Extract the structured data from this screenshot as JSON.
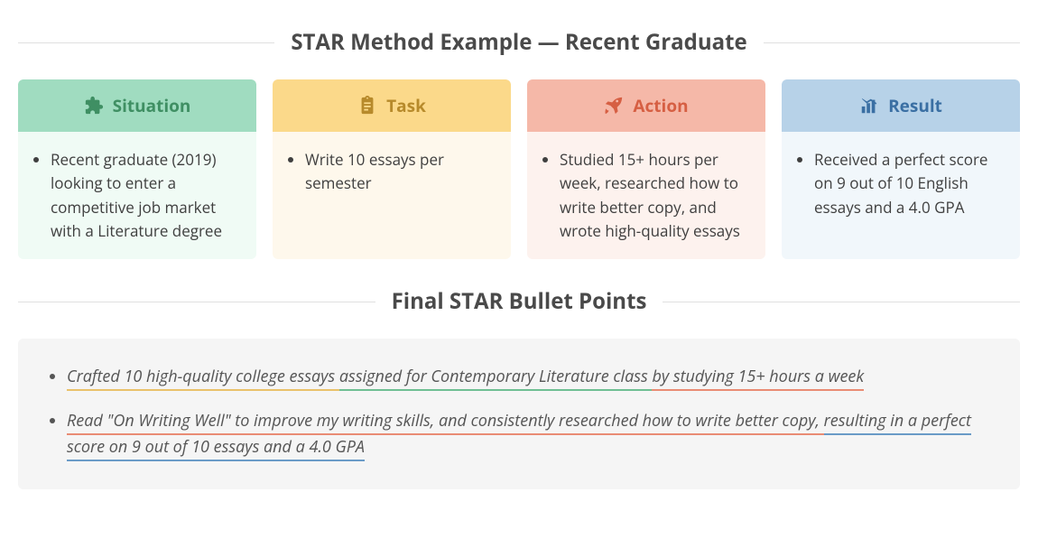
{
  "title_main": "STAR Method Example — Recent Graduate",
  "title_final": "Final STAR Bullet Points",
  "colors": {
    "situation": {
      "header_bg": "#a0dcc0",
      "body_bg": "#f0fbf5",
      "text": "#3f8f63",
      "underline": "#6fbf93"
    },
    "task": {
      "header_bg": "#fbd98a",
      "body_bg": "#fef8ec",
      "text": "#b78a2b",
      "underline": "#e9c26b"
    },
    "action": {
      "header_bg": "#f5b8a8",
      "body_bg": "#fdf2ee",
      "text": "#d65f43",
      "underline": "#e98c74"
    },
    "result": {
      "header_bg": "#b7d2e8",
      "body_bg": "#f1f7fb",
      "text": "#3a6fa3",
      "underline": "#6a9bc7"
    },
    "page_text": "#3a3a3a",
    "final_bg": "#f5f5f5"
  },
  "cards": [
    {
      "key": "situation",
      "label": "Situation",
      "icon": "puzzle-icon",
      "bullet": "Recent graduate (2019) looking to enter a competitive job market with a Literature degree"
    },
    {
      "key": "task",
      "label": "Task",
      "icon": "clipboard-icon",
      "bullet": "Write 10 essays per semester"
    },
    {
      "key": "action",
      "label": "Action",
      "icon": "rocket-icon",
      "bullet": "Studied 15+ hours per week, researched how to write better copy, and wrote high-quality essays"
    },
    {
      "key": "result",
      "label": "Result",
      "icon": "chart-icon",
      "bullet": "Received a perfect score on 9 out of 10 English essays and a 4.0 GPA"
    }
  ],
  "final_points": [
    {
      "segments": [
        {
          "text": "Crafted 10 high-quality college essays ",
          "color_key": "task"
        },
        {
          "text": "assigned for Contemporary Literature class ",
          "color_key": "situation"
        },
        {
          "text": "by studying 15+ hours a week",
          "color_key": "action"
        }
      ]
    },
    {
      "segments": [
        {
          "text": "Read \"On Writing Well\" to improve my writing skills, and consistently researched how to write better copy, ",
          "color_key": "action"
        },
        {
          "text": "resulting in a perfect score on 9 out of 10 essays and a 4.0 GPA",
          "color_key": "result"
        }
      ]
    }
  ],
  "typography": {
    "title_fontsize": 24,
    "card_header_fontsize": 19,
    "card_body_fontsize": 17,
    "final_fontsize": 18
  }
}
